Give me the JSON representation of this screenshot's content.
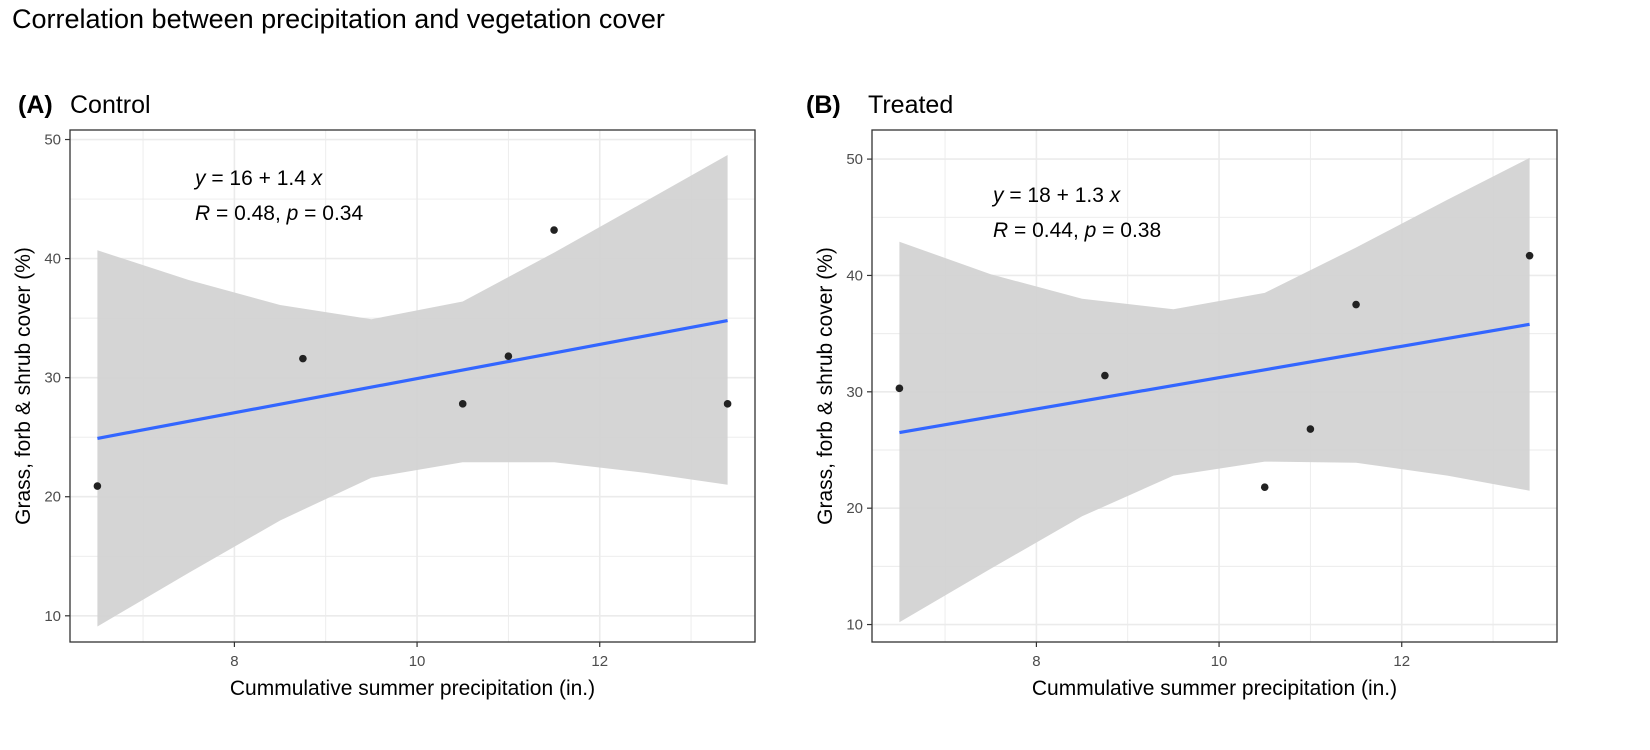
{
  "title": "Correlation between precipitation and vegetation cover",
  "chart_data": [
    {
      "type": "scatter",
      "tag": "(A)",
      "subtitle": "Control",
      "xlabel": "Cummulative summer precipitation (in.)",
      "ylabel": "Grass, forb & shrub cover (%)",
      "xlim": [
        6.2,
        13.7
      ],
      "ylim": [
        7.8,
        50.8
      ],
      "xticks": [
        8,
        10,
        12
      ],
      "yticks": [
        10,
        20,
        30,
        40,
        50
      ],
      "grid": true,
      "points": [
        {
          "x": 6.5,
          "y": 20.9
        },
        {
          "x": 8.75,
          "y": 31.6
        },
        {
          "x": 10.5,
          "y": 27.8
        },
        {
          "x": 11.0,
          "y": 31.8
        },
        {
          "x": 11.5,
          "y": 42.4
        },
        {
          "x": 13.4,
          "y": 27.8
        }
      ],
      "fit": {
        "x": [
          6.5,
          13.4
        ],
        "y": [
          24.9,
          34.8
        ]
      },
      "ci_band": {
        "x": [
          6.5,
          7.5,
          8.5,
          9.5,
          10.5,
          11.5,
          12.5,
          13.4
        ],
        "lower": [
          9.1,
          13.6,
          18.0,
          21.6,
          22.9,
          22.9,
          22.0,
          21.0
        ],
        "upper": [
          40.7,
          38.2,
          36.1,
          34.9,
          36.4,
          40.5,
          44.8,
          48.7
        ]
      },
      "equation_lines": [
        {
          "italic": "y",
          "rest": " = 16 + 1.4 ",
          "italic2": "x"
        },
        {
          "italic": "R",
          "rest": " = 0.48, ",
          "italic2": "p",
          "rest2": " = 0.34"
        }
      ],
      "colors": {
        "points": "#222222",
        "fit": "#3366ff",
        "band": "#d3d3d3",
        "grid": "#ebebeb",
        "border": "#333333"
      }
    },
    {
      "type": "scatter",
      "tag": "(B)",
      "subtitle": "Treated",
      "xlabel": "Cummulative summer precipitation (in.)",
      "ylabel": "Grass, forb & shrub cover (%)",
      "xlim": [
        6.2,
        13.7
      ],
      "ylim": [
        8.5,
        52.5
      ],
      "xticks": [
        8,
        10,
        12
      ],
      "yticks": [
        10,
        20,
        30,
        40,
        50
      ],
      "grid": true,
      "points": [
        {
          "x": 6.5,
          "y": 30.3
        },
        {
          "x": 8.75,
          "y": 31.4
        },
        {
          "x": 10.5,
          "y": 21.8
        },
        {
          "x": 11.0,
          "y": 26.8
        },
        {
          "x": 11.5,
          "y": 37.5
        },
        {
          "x": 13.4,
          "y": 41.7
        }
      ],
      "fit": {
        "x": [
          6.5,
          13.4
        ],
        "y": [
          26.5,
          35.8
        ]
      },
      "ci_band": {
        "x": [
          6.5,
          7.5,
          8.5,
          9.5,
          10.5,
          11.5,
          12.5,
          13.4
        ],
        "lower": [
          10.2,
          14.8,
          19.3,
          22.8,
          24.0,
          23.9,
          22.8,
          21.5
        ],
        "upper": [
          42.9,
          40.1,
          38.0,
          37.1,
          38.5,
          42.4,
          46.5,
          50.1
        ]
      },
      "equation_lines": [
        {
          "italic": "y",
          "rest": " = 18 + 1.3 ",
          "italic2": "x"
        },
        {
          "italic": "R",
          "rest": " = 0.44, ",
          "italic2": "p",
          "rest2": " = 0.38"
        }
      ],
      "colors": {
        "points": "#222222",
        "fit": "#3366ff",
        "band": "#d3d3d3",
        "grid": "#ebebeb",
        "border": "#333333"
      }
    }
  ]
}
